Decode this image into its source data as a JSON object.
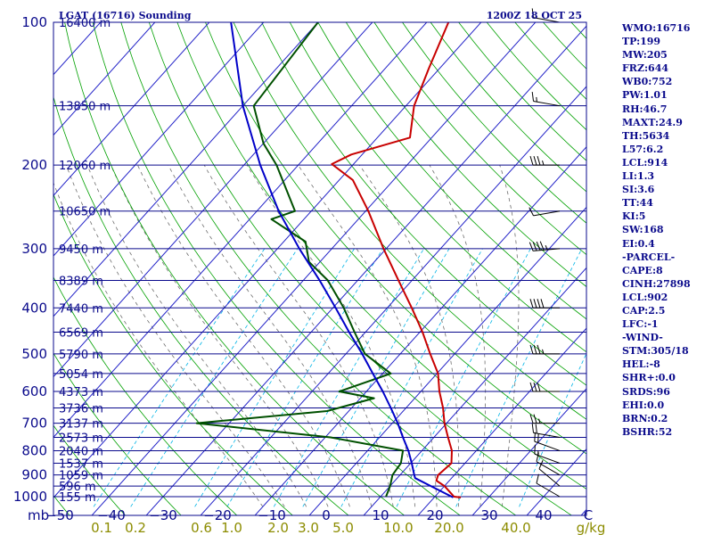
{
  "header": {
    "station": "LGAT (16716) Sounding",
    "time": "1200Z 18 OCT 25"
  },
  "indices": [
    "WMO:16716",
    "TP:199",
    "MW:205",
    "FRZ:644",
    "WB0:752",
    "PW:1.01",
    "RH:46.7",
    "MAXT:24.9",
    "TH:5634",
    "L57:6.2",
    "LCL:914",
    "LI:1.3",
    "SI:3.6",
    "TT:44",
    "KI:5",
    "SW:168",
    "EI:0.4",
    "-PARCEL-",
    "CAPE:8",
    "CINH:27898",
    "LCL:902",
    "CAP:2.5",
    "LFC:-1",
    "-WIND-",
    "STM:305/18",
    "HEL:-8",
    "SHR+:0.0",
    "SRDS:96",
    "EHI:0.0",
    "BRN:0.2",
    "BSHR:52"
  ],
  "colors": {
    "isobar": "#0a0a8c",
    "isotherm": "#2323c8",
    "dry_adiabat": "#00a000",
    "moist_adiabat": "#6e6e6e",
    "mixing_ratio": "#00b4e6",
    "temperature": "#c80000",
    "dewpoint": "#005000",
    "parcel": "#0000c8",
    "label": "#0b0b8c",
    "mixing_label": "#8c8c00"
  },
  "chart_data": {
    "type": "line",
    "subtype": "skew-T log-P sounding",
    "x_unit_label": "C",
    "pressure_unit_label": "mb",
    "mixing_ratio_unit_label": "g/kg",
    "pressure_range": [
      1000,
      100
    ],
    "x_range": [
      -50,
      45
    ],
    "pressure_ticks": [
      "100",
      "200",
      "300",
      "400",
      "500",
      "600",
      "700",
      "800",
      "900",
      "1000"
    ],
    "temperature_ticks": [
      "−50",
      "−40",
      "−30",
      "−20",
      "−10",
      "0",
      "10",
      "20",
      "30",
      "40"
    ],
    "height_labels": [
      {
        "p": 100,
        "label": "16400 m"
      },
      {
        "p": 150,
        "label": "13850 m"
      },
      {
        "p": 200,
        "label": "12060 m"
      },
      {
        "p": 250,
        "label": "10650 m"
      },
      {
        "p": 300,
        "label": "9450 m"
      },
      {
        "p": 350,
        "label": "8389 m"
      },
      {
        "p": 400,
        "label": "7440 m"
      },
      {
        "p": 450,
        "label": "6569 m"
      },
      {
        "p": 500,
        "label": "5790 m"
      },
      {
        "p": 550,
        "label": "5054 m"
      },
      {
        "p": 600,
        "label": "4373 m"
      },
      {
        "p": 650,
        "label": "3736 m"
      },
      {
        "p": 700,
        "label": "3137 m"
      },
      {
        "p": 750,
        "label": "2573 m"
      },
      {
        "p": 800,
        "label": "2040 m"
      },
      {
        "p": 850,
        "label": "1537 m"
      },
      {
        "p": 900,
        "label": "1059 m"
      },
      {
        "p": 950,
        "label": "596 m"
      },
      {
        "p": 1000,
        "label": "155 m"
      }
    ],
    "mixing_ratio_labels": [
      "0.1",
      "0.2",
      "0.6",
      "1.0",
      "2.0",
      "3.0",
      "5.0",
      "10.0",
      "20.0",
      "40.0"
    ],
    "series": [
      {
        "key": "temperature",
        "points": [
          {
            "p": 1004,
            "t": 24.9
          },
          {
            "p": 1000,
            "t": 23.5
          },
          {
            "p": 950,
            "t": 20.0
          },
          {
            "p": 925,
            "t": 17.6
          },
          {
            "p": 900,
            "t": 17.0
          },
          {
            "p": 850,
            "t": 17.5
          },
          {
            "p": 800,
            "t": 15.5
          },
          {
            "p": 750,
            "t": 12.6
          },
          {
            "p": 700,
            "t": 9.6
          },
          {
            "p": 650,
            "t": 6.8
          },
          {
            "p": 600,
            "t": 3.4
          },
          {
            "p": 550,
            "t": 0.2
          },
          {
            "p": 500,
            "t": -4.5
          },
          {
            "p": 450,
            "t": -9.5
          },
          {
            "p": 400,
            "t": -15.5
          },
          {
            "p": 350,
            "t": -22.5
          },
          {
            "p": 300,
            "t": -30.5
          },
          {
            "p": 250,
            "t": -39.5
          },
          {
            "p": 215,
            "t": -47.5
          },
          {
            "p": 199,
            "t": -54.0
          },
          {
            "p": 190,
            "t": -52.0
          },
          {
            "p": 175,
            "t": -44.0
          },
          {
            "p": 150,
            "t": -48.5
          },
          {
            "p": 125,
            "t": -52.0
          },
          {
            "p": 100,
            "t": -56.0
          }
        ]
      },
      {
        "key": "dewpoint",
        "points": [
          {
            "p": 1000,
            "t": 11.0
          },
          {
            "p": 950,
            "t": 10.0
          },
          {
            "p": 900,
            "t": 8.6
          },
          {
            "p": 850,
            "t": 8.2
          },
          {
            "p": 800,
            "t": 6.5
          },
          {
            "p": 750,
            "t": -9.0
          },
          {
            "p": 700,
            "t": -36.0
          },
          {
            "p": 660,
            "t": -14.0
          },
          {
            "p": 620,
            "t": -7.5
          },
          {
            "p": 600,
            "t": -15.0
          },
          {
            "p": 550,
            "t": -8.5
          },
          {
            "p": 500,
            "t": -16.5
          },
          {
            "p": 450,
            "t": -22.0
          },
          {
            "p": 400,
            "t": -28.0
          },
          {
            "p": 350,
            "t": -35.5
          },
          {
            "p": 320,
            "t": -42.0
          },
          {
            "p": 290,
            "t": -46.0
          },
          {
            "p": 260,
            "t": -56.0
          },
          {
            "p": 250,
            "t": -53.0
          },
          {
            "p": 200,
            "t": -64.0
          },
          {
            "p": 180,
            "t": -70.0
          },
          {
            "p": 150,
            "t": -78.0
          },
          {
            "p": 100,
            "t": -80.0
          }
        ]
      },
      {
        "key": "parcel",
        "points": [
          {
            "p": 1004,
            "t": 23.5
          },
          {
            "p": 950,
            "t": 17.5
          },
          {
            "p": 914,
            "t": 13.3
          },
          {
            "p": 900,
            "t": 12.6
          },
          {
            "p": 850,
            "t": 10.2
          },
          {
            "p": 800,
            "t": 7.5
          },
          {
            "p": 750,
            "t": 4.3
          },
          {
            "p": 700,
            "t": 1.0
          },
          {
            "p": 650,
            "t": -2.8
          },
          {
            "p": 600,
            "t": -7.0
          },
          {
            "p": 550,
            "t": -11.8
          },
          {
            "p": 500,
            "t": -17.0
          },
          {
            "p": 450,
            "t": -23.0
          },
          {
            "p": 400,
            "t": -29.5
          },
          {
            "p": 350,
            "t": -37.0
          },
          {
            "p": 300,
            "t": -46.0
          },
          {
            "p": 250,
            "t": -56.0
          },
          {
            "p": 200,
            "t": -67.0
          },
          {
            "p": 150,
            "t": -80.0
          },
          {
            "p": 100,
            "t": -96.0
          }
        ]
      }
    ],
    "wind_barbs": [
      {
        "p": 1000,
        "dir": 300,
        "kt": 10
      },
      {
        "p": 950,
        "dir": 310,
        "kt": 10
      },
      {
        "p": 900,
        "dir": 300,
        "kt": 10
      },
      {
        "p": 850,
        "dir": 290,
        "kt": 15
      },
      {
        "p": 800,
        "dir": 290,
        "kt": 20
      },
      {
        "p": 750,
        "dir": 280,
        "kt": 20
      },
      {
        "p": 700,
        "dir": 270,
        "kt": 25
      },
      {
        "p": 600,
        "dir": 270,
        "kt": 30
      },
      {
        "p": 500,
        "dir": 270,
        "kt": 35
      },
      {
        "p": 400,
        "dir": 270,
        "kt": 40
      },
      {
        "p": 300,
        "dir": 265,
        "kt": 45
      },
      {
        "p": 250,
        "dir": 260,
        "kt": 10
      },
      {
        "p": 200,
        "dir": 270,
        "kt": 35
      },
      {
        "p": 150,
        "dir": 280,
        "kt": 15
      },
      {
        "p": 100,
        "dir": 280,
        "kt": 10
      }
    ]
  }
}
